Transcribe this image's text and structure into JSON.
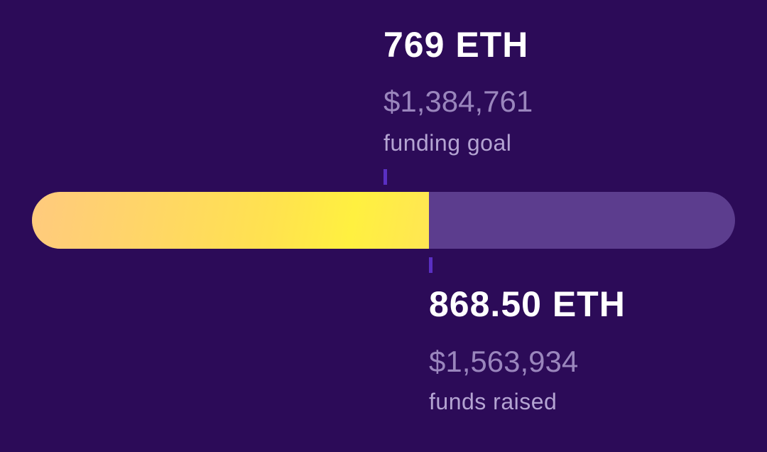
{
  "goal": {
    "amount": "769 ETH",
    "usd": "$1,384,761",
    "label": "funding goal"
  },
  "raised": {
    "amount": "868.50 ETH",
    "usd": "$1,563,934",
    "label": "funds raised"
  }
}
